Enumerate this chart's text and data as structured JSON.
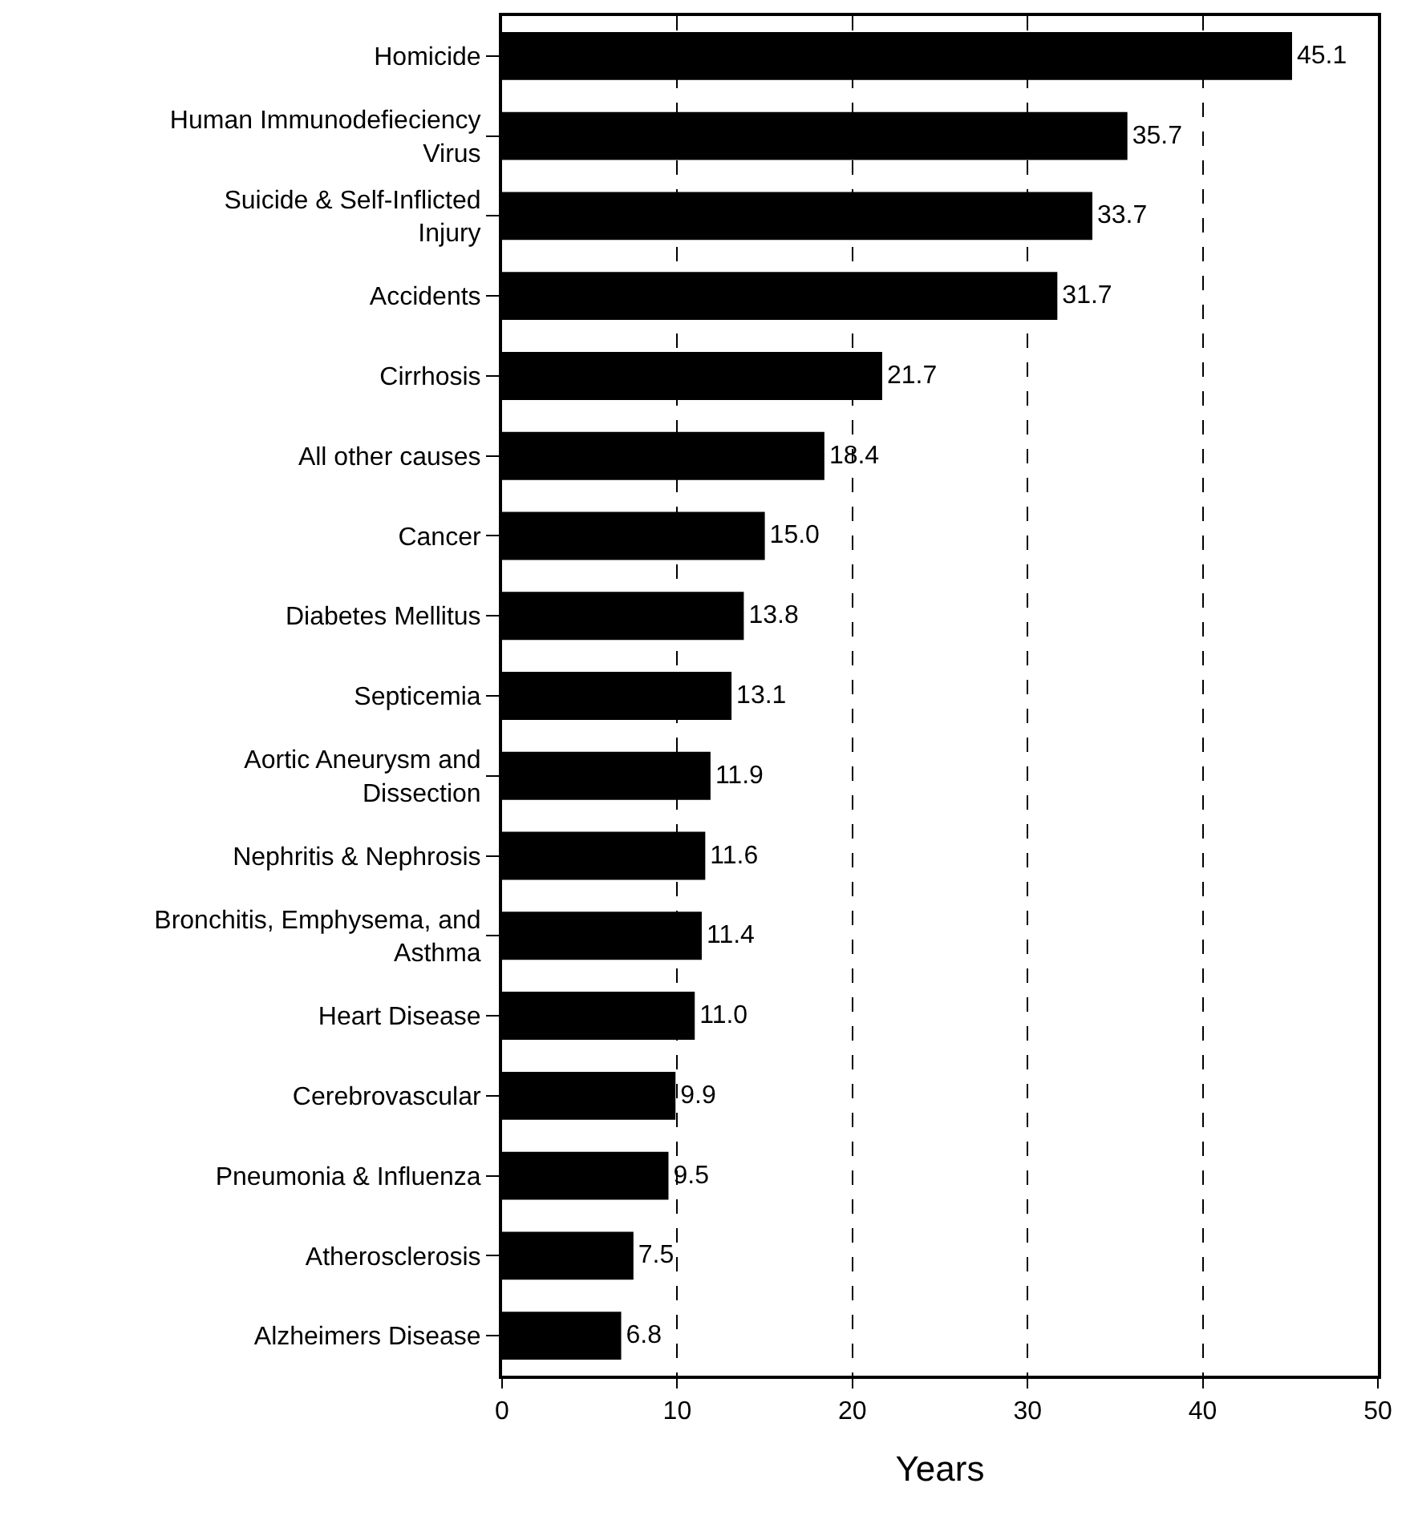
{
  "chart_data": {
    "type": "bar",
    "orientation": "horizontal",
    "xlabel": "Years",
    "categories": [
      "Homicide",
      "Human Immunodefieciency Virus",
      "Suicide & Self-Inflicted Injury",
      "Accidents",
      "Cirrhosis",
      "All other causes",
      "Cancer",
      "Diabetes Mellitus",
      "Septicemia",
      "Aortic Aneurysm and Dissection",
      "Nephritis & Nephrosis",
      "Bronchitis, Emphysema, and Asthma",
      "Heart Disease",
      "Cerebrovascular",
      "Pneumonia & Influenza",
      "Atherosclerosis",
      "Alzheimers Disease"
    ],
    "values": [
      45.1,
      35.7,
      33.7,
      31.7,
      21.7,
      18.4,
      15.0,
      13.8,
      13.1,
      11.9,
      11.6,
      11.4,
      11.0,
      9.9,
      9.5,
      7.5,
      6.8
    ],
    "value_labels": [
      "45.1",
      "35.7",
      "33.7",
      "31.7",
      "21.7",
      "18.4",
      "15.0",
      "13.8",
      "13.1",
      "11.9",
      "11.6",
      "11.4",
      "11.0",
      "9.9",
      "9.5",
      "7.5",
      "6.8"
    ],
    "color": "#000000",
    "xlim": [
      0,
      50
    ],
    "xticks": [
      0,
      10,
      20,
      30,
      40,
      50
    ],
    "grid": "x",
    "legend": false
  }
}
